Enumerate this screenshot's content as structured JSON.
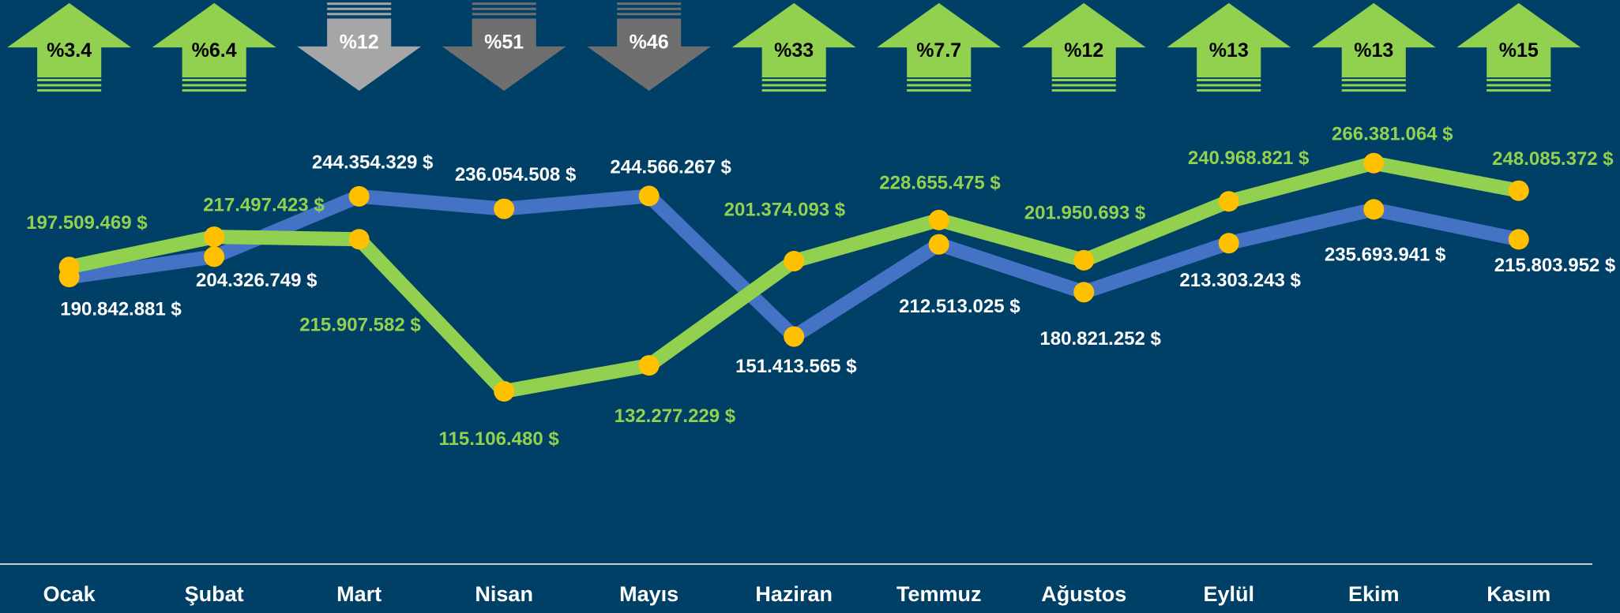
{
  "chart_data": {
    "type": "line",
    "categories": [
      "Ocak",
      "Şubat",
      "Mart",
      "Nisan",
      "Mayıs",
      "Haziran",
      "Temmuz",
      "Ağustos",
      "Eylül",
      "Ekim",
      "Kasım"
    ],
    "series": [
      {
        "color": "#4472c4",
        "label_color": "#ffffff",
        "values": [
          190842881,
          204326749,
          244354329,
          236054508,
          244566267,
          151413565,
          212513025,
          180821252,
          213303243,
          235693941,
          215803952
        ],
        "value_labels": [
          "190.842.881 $",
          "204.326.749 $",
          "244.354.329 $",
          "236.054.508 $",
          "244.566.267 $",
          "151.413.565 $",
          "212.513.025 $",
          "180.821.252 $",
          "213.303.243 $",
          "235.693.941 $",
          "215.803.952 $"
        ]
      },
      {
        "color": "#92d050",
        "label_color": "#92d050",
        "values": [
          197509469,
          217497423,
          215907582,
          115106480,
          132277229,
          201374093,
          228655475,
          201950693,
          240968821,
          266381064,
          248085372
        ],
        "value_labels": [
          "197.509.469 $",
          "217.497.423 $",
          "215.907.582 $",
          "115.106.480 $",
          "132.277.229 $",
          "201.374.093 $",
          "228.655.475 $",
          "201.950.693 $",
          "240.968.821 $",
          "266.381.064 $",
          "248.085.372 $"
        ]
      }
    ],
    "marker_color": "#ffc000",
    "changes": [
      {
        "value": 3.4,
        "label": "%3.4",
        "direction": "up",
        "color": "#92d050"
      },
      {
        "value": 6.4,
        "label": "%6.4",
        "direction": "up",
        "color": "#92d050"
      },
      {
        "value": 12,
        "label": "%12",
        "direction": "down",
        "color": "#a6a6a6"
      },
      {
        "value": 51,
        "label": "%51",
        "direction": "down",
        "color": "#6f6f6f"
      },
      {
        "value": 46,
        "label": "%46",
        "direction": "down",
        "color": "#6f6f6f"
      },
      {
        "value": 33,
        "label": "%33",
        "direction": "up",
        "color": "#92d050"
      },
      {
        "value": 7.7,
        "label": "%7.7",
        "direction": "up",
        "color": "#92d050"
      },
      {
        "value": 12,
        "label": "%12",
        "direction": "up",
        "color": "#92d050"
      },
      {
        "value": 13,
        "label": "%13",
        "direction": "up",
        "color": "#92d050"
      },
      {
        "value": 13,
        "label": "%13",
        "direction": "up",
        "color": "#92d050"
      },
      {
        "value": 15,
        "label": "%15",
        "direction": "up",
        "color": "#92d050"
      }
    ]
  }
}
